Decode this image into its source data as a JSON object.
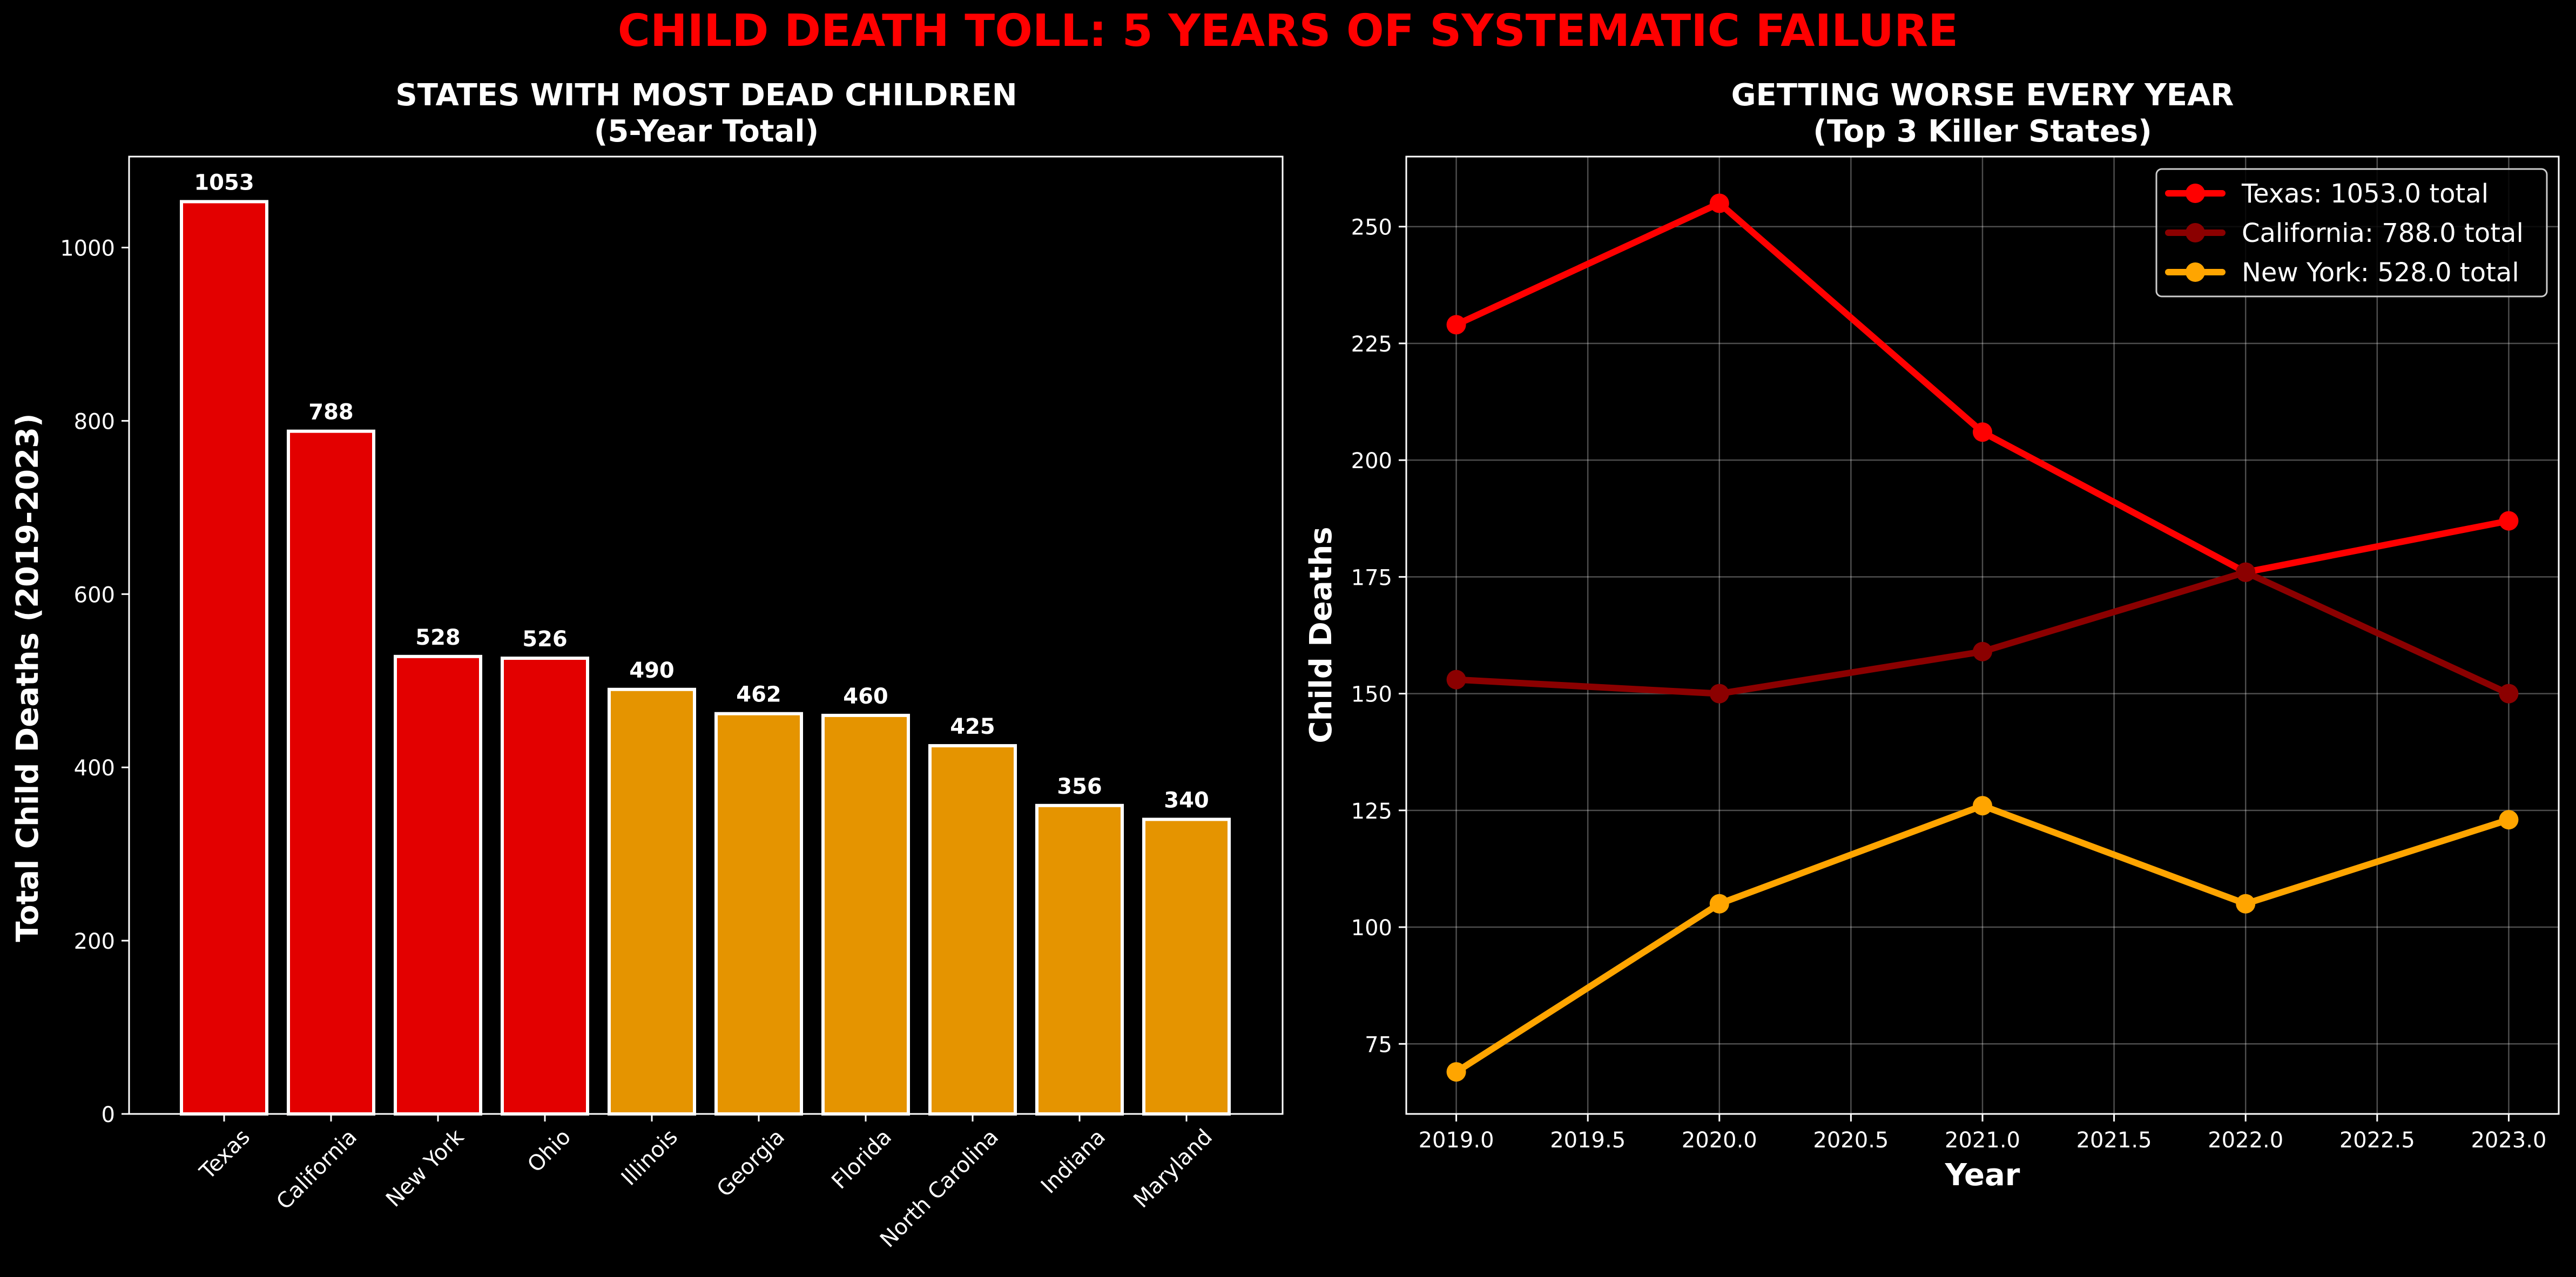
{
  "figure_title": "CHILD DEATH TOLL: 5 YEARS OF SYSTEMATIC FAILURE",
  "colors": {
    "background": "#000000",
    "title": "#ff0000",
    "axes": "#ffffff",
    "high": "#e30000",
    "mid": "#e59400",
    "texas_line": "#ff0000",
    "california_line": "#8b0000",
    "newyork_line": "#ffa500"
  },
  "chart_data": [
    {
      "type": "bar",
      "title": "STATES WITH MOST DEAD CHILDREN",
      "subtitle": "(5-Year Total)",
      "xlabel": "",
      "ylabel": "Total Child Deaths (2019-2023)",
      "ylim": [
        0,
        1105
      ],
      "yticks": [
        0,
        200,
        400,
        600,
        800,
        1000
      ],
      "categories": [
        "Texas",
        "California",
        "New York",
        "Ohio",
        "Illinois",
        "Georgia",
        "Florida",
        "North Carolina",
        "Indiana",
        "Maryland"
      ],
      "values": [
        1053,
        788,
        528,
        526,
        490,
        462,
        460,
        425,
        356,
        340
      ],
      "value_labels": [
        "1053",
        "788",
        "528",
        "526",
        "490",
        "462",
        "460",
        "425",
        "356",
        "340"
      ],
      "bar_color_groups": [
        "high",
        "high",
        "high",
        "high",
        "mid",
        "mid",
        "mid",
        "mid",
        "mid",
        "mid"
      ],
      "grid": false
    },
    {
      "type": "line",
      "title": "GETTING WORSE EVERY YEAR",
      "subtitle": "(Top 3 Killer States)",
      "xlabel": "Year",
      "ylabel": "Child Deaths",
      "xlim": [
        2018.81,
        2023.19
      ],
      "ylim": [
        60,
        265
      ],
      "xticks": [
        2019.0,
        2019.5,
        2020.0,
        2020.5,
        2021.0,
        2021.5,
        2022.0,
        2022.5,
        2023.0
      ],
      "xtick_labels": [
        "2019.0",
        "2019.5",
        "2020.0",
        "2020.5",
        "2021.0",
        "2021.5",
        "2022.0",
        "2022.5",
        "2023.0"
      ],
      "yticks": [
        75,
        100,
        125,
        150,
        175,
        200,
        225,
        250
      ],
      "x": [
        2019,
        2020,
        2021,
        2022,
        2023
      ],
      "series": [
        {
          "name": "Texas",
          "legend": "Texas: 1053.0 total",
          "color_key": "texas_line",
          "values": [
            229,
            255,
            206,
            176,
            187
          ]
        },
        {
          "name": "California",
          "legend": "California: 788.0 total",
          "color_key": "california_line",
          "values": [
            153,
            150,
            159,
            176,
            150
          ]
        },
        {
          "name": "New York",
          "legend": "New York: 528.0 total",
          "color_key": "newyork_line",
          "values": [
            69,
            105,
            126,
            105,
            123
          ]
        }
      ],
      "legend_position": "top-right",
      "grid": true
    }
  ]
}
